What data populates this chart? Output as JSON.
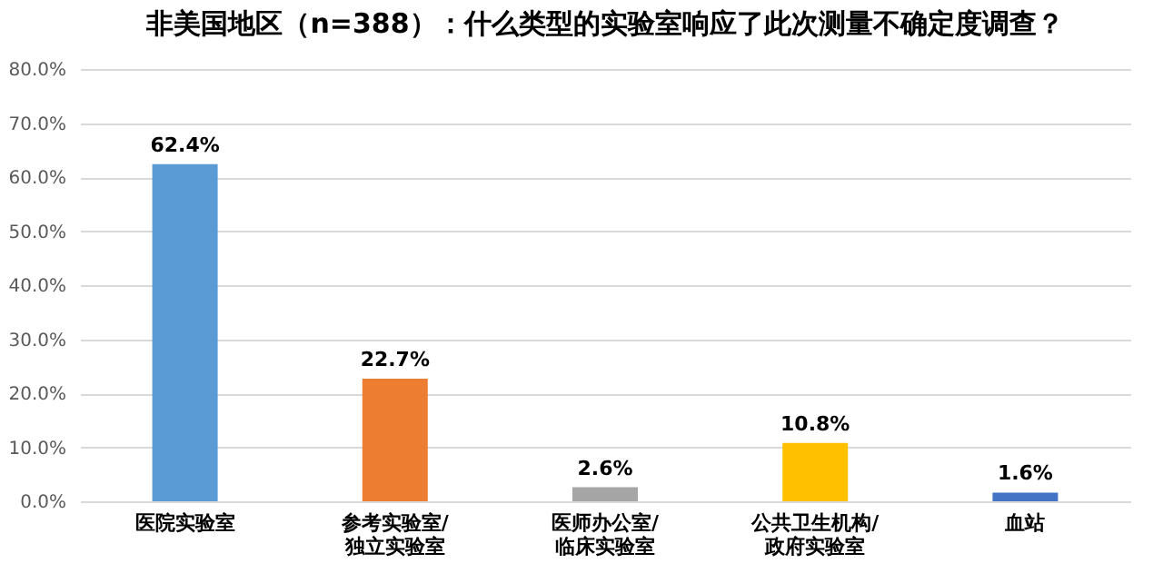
{
  "chart_data": {
    "type": "bar",
    "title": "非美国地区（n=388）：什么类型的实验室响应了此次测量不确定度调查？",
    "categories": [
      "医院实验室",
      "参考实验室/独立实验室",
      "医师办公室/临床实验室",
      "公共卫生机构/政府实验室",
      "血站"
    ],
    "values": [
      62.4,
      22.7,
      2.6,
      10.8,
      1.6
    ],
    "colors": [
      "#5b9bd5",
      "#ed7d31",
      "#a5a5a5",
      "#ffc000",
      "#4472c4"
    ],
    "value_labels": [
      "62.4%",
      "22.7%",
      "2.6%",
      "10.8%",
      "1.6%"
    ],
    "ylim": [
      0,
      80
    ],
    "yticks": [
      {
        "value": 0,
        "label": "0.0%"
      },
      {
        "value": 10,
        "label": "10.0%"
      },
      {
        "value": 20,
        "label": "20.0%"
      },
      {
        "value": 30,
        "label": "30.0%"
      },
      {
        "value": 40,
        "label": "40.0%"
      },
      {
        "value": 50,
        "label": "50.0%"
      },
      {
        "value": 60,
        "label": "60.0%"
      },
      {
        "value": 70,
        "label": "70.0%"
      },
      {
        "value": 80,
        "label": "80.0%"
      }
    ],
    "grid": "y"
  }
}
